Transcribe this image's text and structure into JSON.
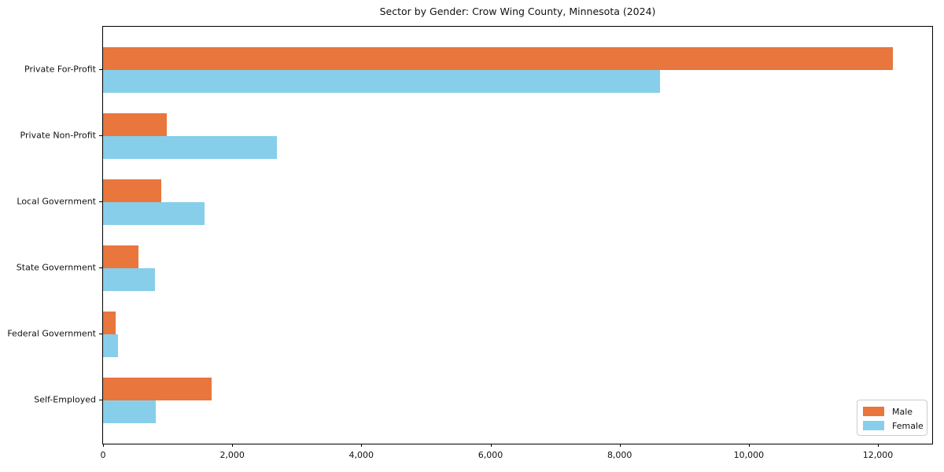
{
  "chart_data": {
    "type": "bar",
    "orientation": "horizontal",
    "title": "Sector by Gender: Crow Wing County, Minnesota (2024)",
    "categories": [
      "Private For-Profit",
      "Private Non-Profit",
      "Local Government",
      "State Government",
      "Federal Government",
      "Self-Employed"
    ],
    "series": [
      {
        "name": "Male",
        "color": "#e8763d",
        "values": [
          12230,
          990,
          900,
          550,
          200,
          1680
        ]
      },
      {
        "name": "Female",
        "color": "#87ceeb",
        "values": [
          8620,
          2690,
          1570,
          800,
          230,
          820
        ]
      }
    ],
    "xlabel": "",
    "ylabel": "",
    "xlim": [
      0,
      12840
    ],
    "x_ticks": [
      0,
      2000,
      4000,
      6000,
      8000,
      10000,
      12000
    ],
    "x_tick_labels": [
      "0",
      "2,000",
      "4,000",
      "6,000",
      "8,000",
      "10,000",
      "12,000"
    ],
    "grid": false,
    "legend": {
      "position": "lower right",
      "entries": [
        "Male",
        "Female"
      ]
    },
    "colors": {
      "axis": "#000000",
      "text": "#111111",
      "legend_border": "#cccccc",
      "background": "#ffffff"
    }
  }
}
